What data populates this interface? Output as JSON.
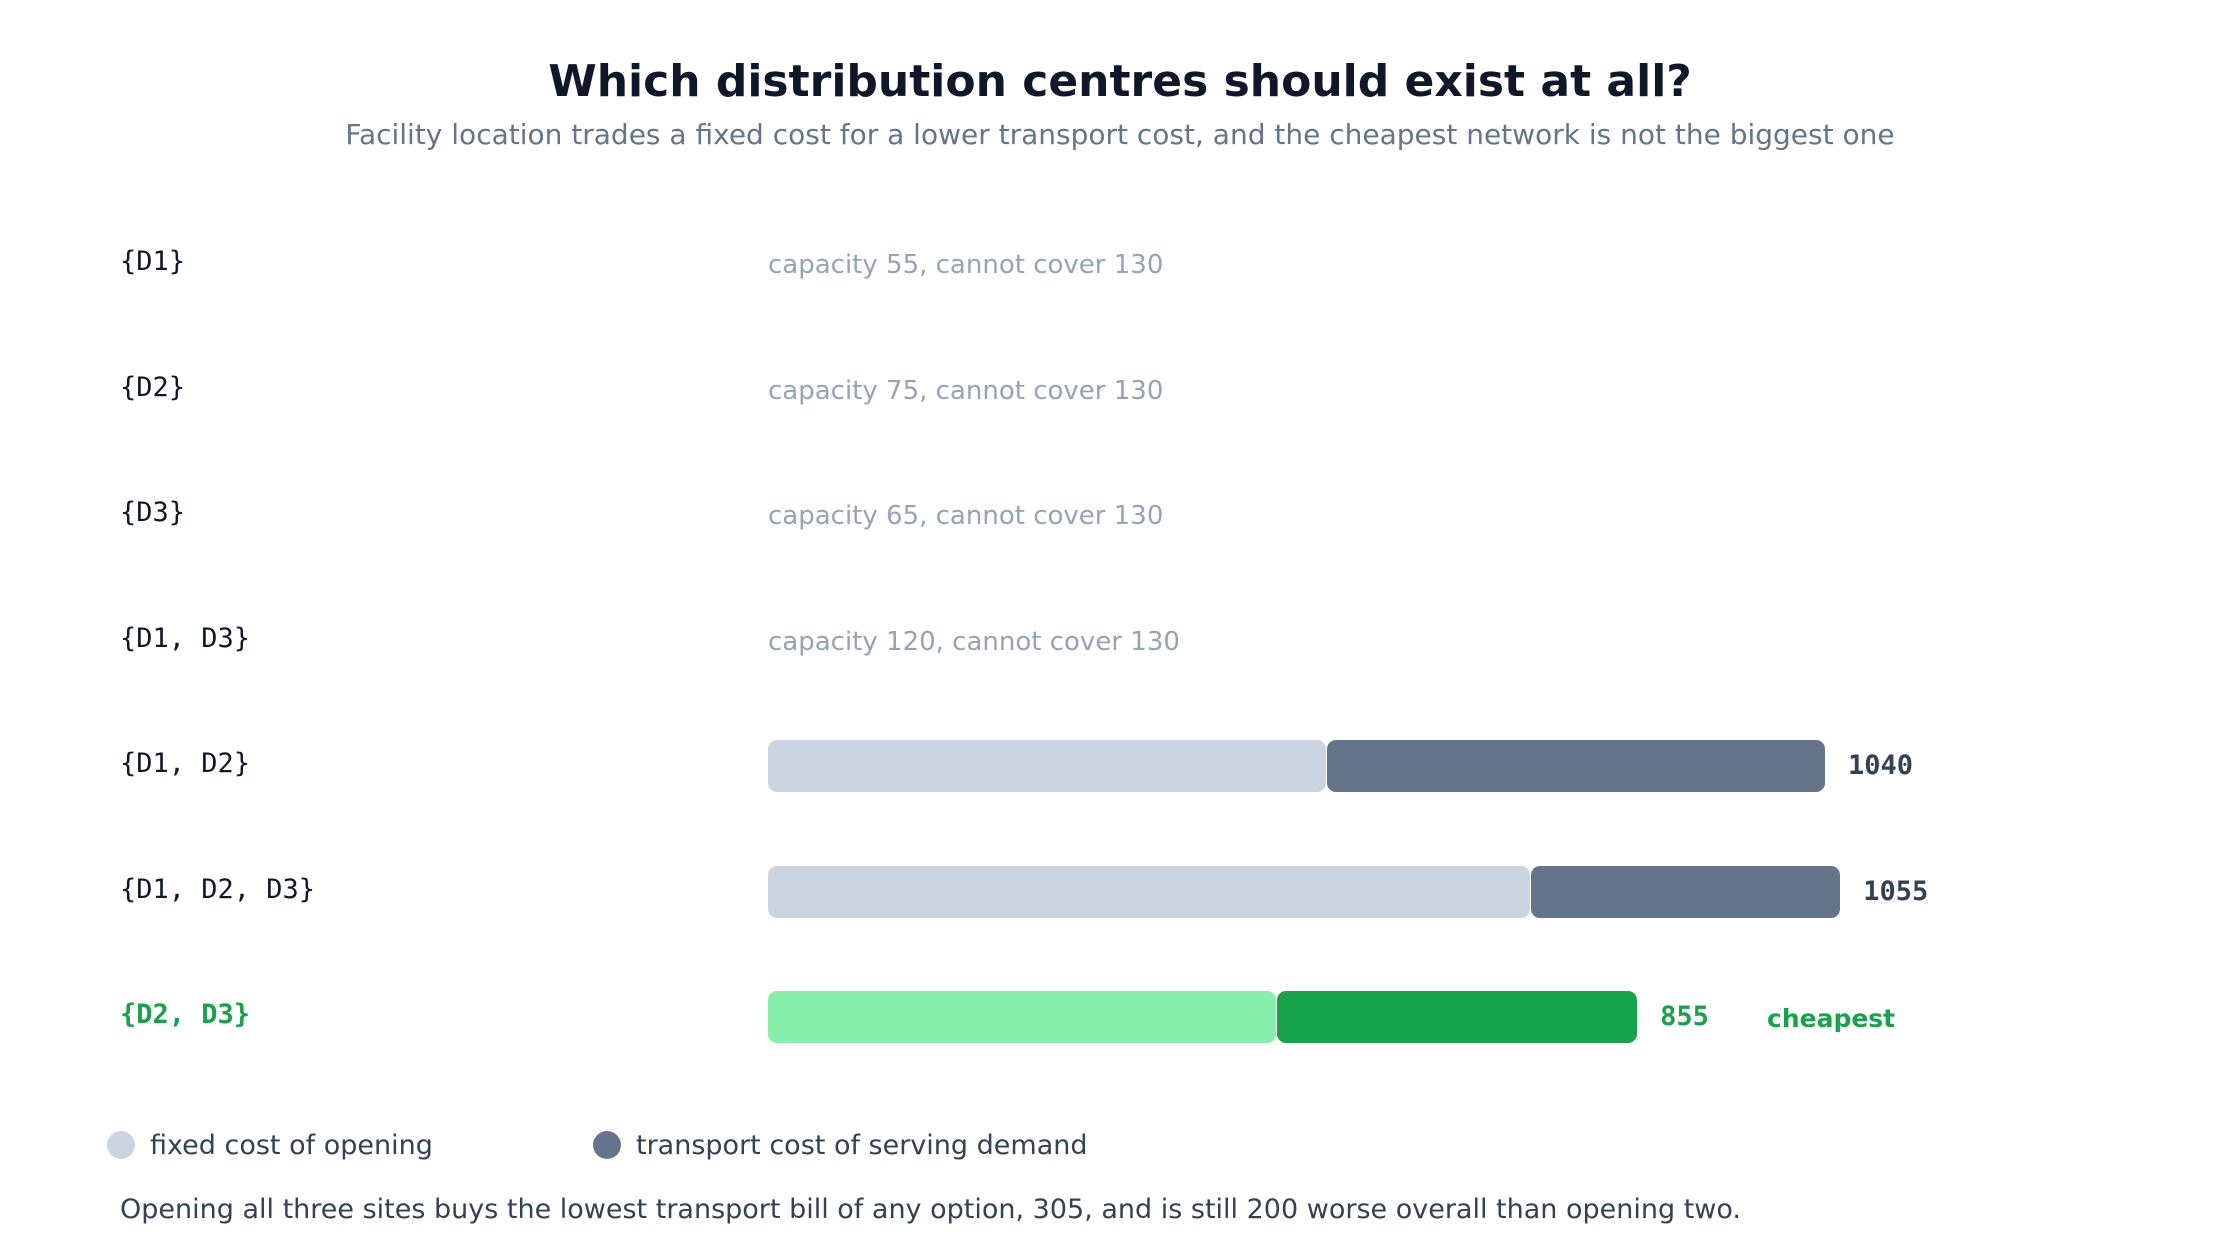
{
  "chart_data": {
    "type": "bar",
    "stacked": true,
    "orientation": "horizontal",
    "title": "Which distribution centres should exist at all?",
    "subtitle": "Facility location trades a fixed cost for a lower transport cost, and the cheapest network is not the biggest one",
    "series": [
      {
        "name": "fixed cost of opening",
        "color": "#cbd5e1",
        "highlight_color": "#86efac"
      },
      {
        "name": "transport cost of serving demand",
        "color": "#64748b",
        "highlight_color": "#16a34a"
      }
    ],
    "rows": [
      {
        "label": "{D1}",
        "feasible": false,
        "note": "capacity 55, cannot cover 130"
      },
      {
        "label": "{D2}",
        "feasible": false,
        "note": "capacity 75, cannot cover 130"
      },
      {
        "label": "{D3}",
        "feasible": false,
        "note": "capacity 65, cannot cover 130"
      },
      {
        "label": "{D1, D3}",
        "feasible": false,
        "note": "capacity 120, cannot cover 130"
      },
      {
        "label": "{D1, D2}",
        "feasible": true,
        "fixed": 550,
        "transport": 490,
        "total": "1040",
        "best": false
      },
      {
        "label": "{D1, D2, D3}",
        "feasible": true,
        "fixed": 750,
        "transport": 305,
        "total": "1055",
        "best": false
      },
      {
        "label": "{D2, D3}",
        "feasible": true,
        "fixed": 500,
        "transport": 355,
        "total": "855",
        "best": true,
        "badge": "cheapest"
      }
    ],
    "xlim": [
      0,
      1200
    ],
    "grid": false,
    "legend_position": "bottom-left"
  },
  "footnote": "Opening all three sites buys the lowest transport bill of any option, 305, and is still 200 worse overall than opening two."
}
